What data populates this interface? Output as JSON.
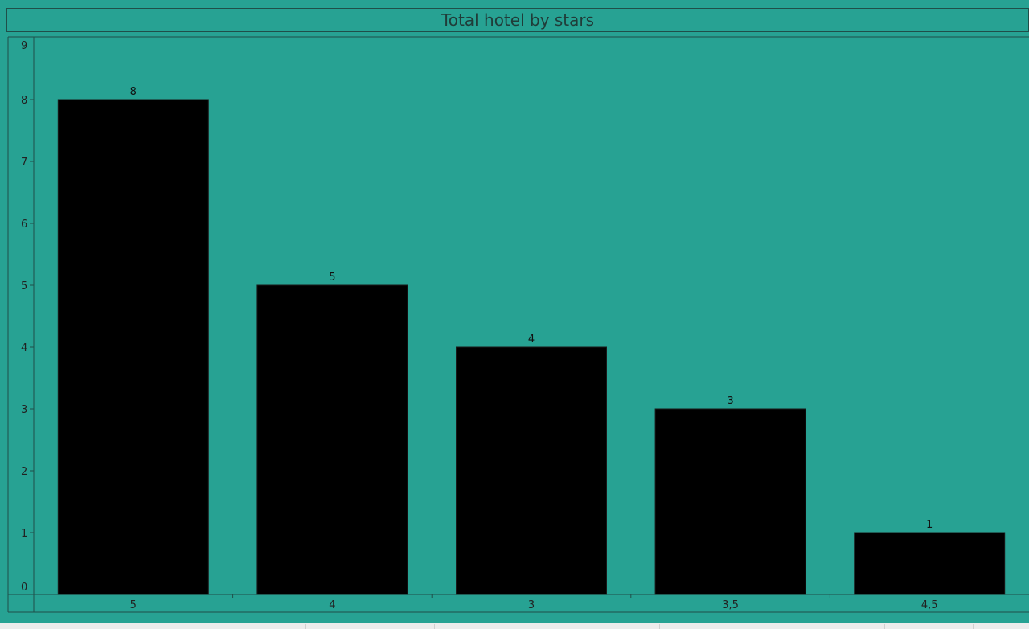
{
  "chart_data": {
    "type": "bar",
    "title": "Total hotel by stars",
    "xlabel": "",
    "ylabel": "",
    "categories": [
      "5",
      "4",
      "3",
      "3,5",
      "4,5"
    ],
    "values": [
      8,
      5,
      4,
      3,
      1
    ],
    "data_labels": [
      "8",
      "5",
      "4",
      "3",
      "1"
    ],
    "y_ticks": [
      0,
      1,
      2,
      3,
      4,
      5,
      6,
      7,
      8,
      9
    ],
    "ylim": [
      0,
      9
    ],
    "grid": false,
    "legend": "none",
    "colors": {
      "background": "#27a293",
      "bar": "#000000",
      "axis": "#1f4f49",
      "text": "#222222"
    }
  }
}
